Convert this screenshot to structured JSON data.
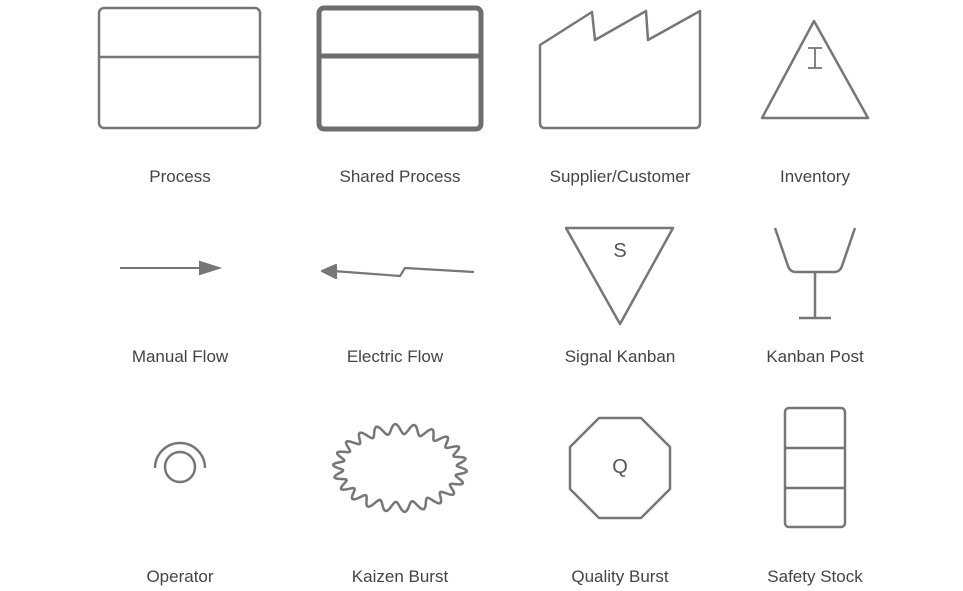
{
  "colors": {
    "stroke": "#777777",
    "strong_stroke": "#6e6e6e",
    "label": "#444444",
    "background": "#ffffff"
  },
  "shapes": [
    {
      "id": "process",
      "label": "Process",
      "icon": "process-icon"
    },
    {
      "id": "shared-process",
      "label": "Shared Process",
      "icon": "shared-process-icon"
    },
    {
      "id": "supplier-customer",
      "label": "Supplier/Customer",
      "icon": "factory-icon"
    },
    {
      "id": "inventory",
      "label": "Inventory",
      "icon": "inventory-triangle-icon",
      "glyph": "I"
    },
    {
      "id": "manual-flow",
      "label": "Manual Flow",
      "icon": "arrow-right-icon"
    },
    {
      "id": "electric-flow",
      "label": "Electric Flow",
      "icon": "lightning-arrow-icon"
    },
    {
      "id": "signal-kanban",
      "label": "Signal Kanban",
      "icon": "signal-kanban-icon",
      "glyph": "S"
    },
    {
      "id": "kanban-post",
      "label": "Kanban Post",
      "icon": "kanban-post-icon"
    },
    {
      "id": "operator",
      "label": "Operator",
      "icon": "operator-icon"
    },
    {
      "id": "kaizen-burst",
      "label": "Kaizen Burst",
      "icon": "kaizen-burst-icon"
    },
    {
      "id": "quality-burst",
      "label": "Quality Burst",
      "icon": "octagon-icon",
      "glyph": "Q"
    },
    {
      "id": "safety-stock",
      "label": "Safety Stock",
      "icon": "safety-stock-icon"
    }
  ]
}
